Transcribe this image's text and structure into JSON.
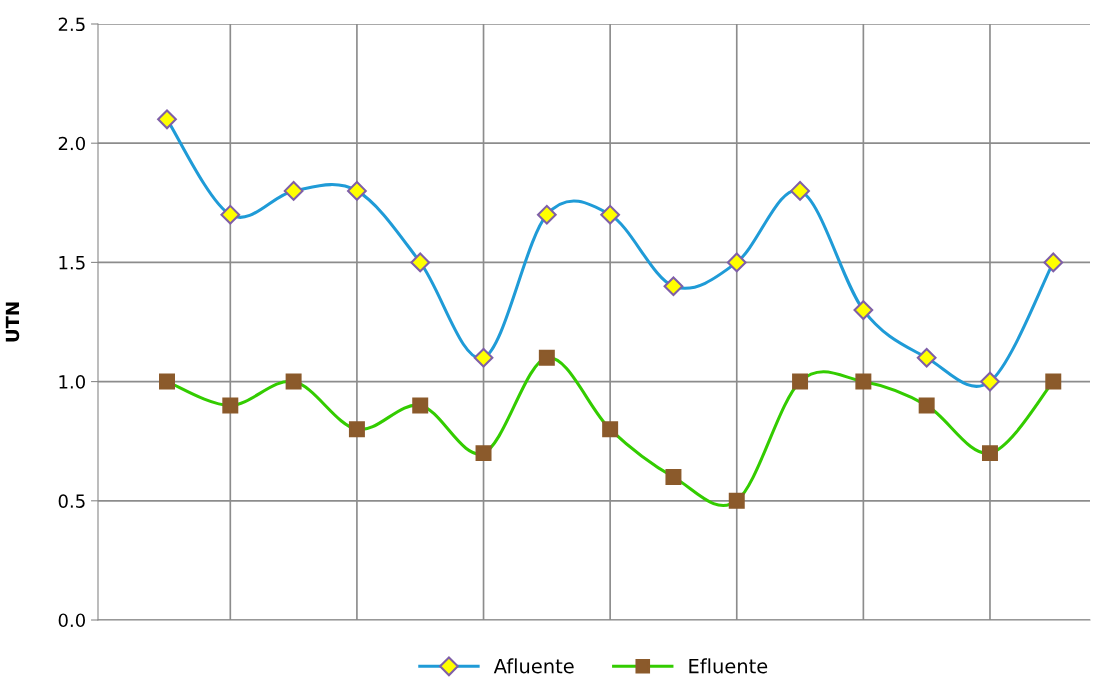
{
  "chart_data": {
    "type": "line",
    "ylabel": "UTN",
    "categories": [
      null,
      null,
      null,
      null,
      null,
      null,
      null,
      null,
      null,
      null,
      null,
      null,
      null,
      null,
      null
    ],
    "series": [
      {
        "name": "Afluente",
        "color": "#1f9bd7",
        "marker": "diamond",
        "values": [
          2.1,
          1.7,
          1.8,
          1.8,
          1.5,
          1.1,
          1.7,
          1.7,
          1.4,
          1.5,
          1.8,
          1.3,
          1.1,
          1.0,
          1.5
        ]
      },
      {
        "name": "Efluente",
        "color": "#33cc00",
        "marker": "square",
        "values": [
          1.0,
          0.9,
          1.0,
          0.8,
          0.9,
          0.7,
          1.1,
          0.8,
          0.6,
          0.5,
          1.0,
          1.0,
          0.9,
          0.7,
          1.0
        ]
      }
    ],
    "ylim": [
      0,
      2.5
    ],
    "yticks": [
      {
        "value": 0,
        "label": "0.0"
      },
      {
        "value": 0.5,
        "label": "0.5"
      },
      {
        "value": 1,
        "label": "1.0"
      },
      {
        "value": 1.5,
        "label": "1.5"
      },
      {
        "value": 2,
        "label": "2.0"
      },
      {
        "value": 2.5,
        "label": "2.5"
      }
    ],
    "grid": true,
    "legend": "bottom",
    "line_style": "solid"
  }
}
